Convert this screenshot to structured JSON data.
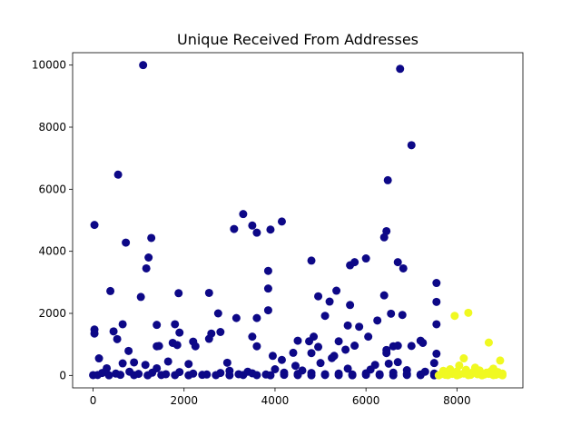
{
  "chart_data": {
    "type": "scatter",
    "title": "Unique Received From Addresses",
    "xlabel": "",
    "ylabel": "",
    "xlim": [
      -450,
      9450
    ],
    "ylim": [
      -400,
      10400
    ],
    "xticks": [
      0,
      2000,
      4000,
      6000,
      8000
    ],
    "yticks": [
      0,
      2000,
      4000,
      6000,
      8000,
      10000
    ],
    "grid": false,
    "legend": "none",
    "colors": {
      "class_0": "#0d0887",
      "class_1": "#f0f921"
    },
    "series": [
      {
        "class": 0,
        "color": "#0d0887",
        "points": [
          [
            1100,
            10000
          ],
          [
            6750,
            9880
          ],
          [
            7000,
            7420
          ],
          [
            550,
            6470
          ],
          [
            6480,
            6290
          ],
          [
            30,
            4850
          ],
          [
            3300,
            5200
          ],
          [
            3500,
            4830
          ],
          [
            4150,
            4960
          ],
          [
            3600,
            4600
          ],
          [
            3900,
            4700
          ],
          [
            3100,
            4720
          ],
          [
            1280,
            4430
          ],
          [
            720,
            4280
          ],
          [
            6450,
            4650
          ],
          [
            6400,
            4450
          ],
          [
            1220,
            3800
          ],
          [
            1170,
            3450
          ],
          [
            4800,
            3700
          ],
          [
            5650,
            3550
          ],
          [
            5750,
            3650
          ],
          [
            6000,
            3770
          ],
          [
            6700,
            3650
          ],
          [
            6820,
            3450
          ],
          [
            3850,
            3370
          ],
          [
            7550,
            2980
          ],
          [
            380,
            2720
          ],
          [
            1050,
            2530
          ],
          [
            1880,
            2650
          ],
          [
            2550,
            2660
          ],
          [
            3850,
            2800
          ],
          [
            5350,
            2730
          ],
          [
            4950,
            2550
          ],
          [
            5200,
            2380
          ],
          [
            6400,
            2580
          ],
          [
            7550,
            2370
          ],
          [
            5650,
            2270
          ],
          [
            6550,
            1990
          ],
          [
            6800,
            1950
          ],
          [
            2750,
            2000
          ],
          [
            3850,
            2100
          ],
          [
            3150,
            1850
          ],
          [
            3600,
            1850
          ],
          [
            5100,
            1920
          ],
          [
            5850,
            1570
          ],
          [
            5600,
            1610
          ],
          [
            6250,
            1770
          ],
          [
            7550,
            1650
          ],
          [
            30,
            1480
          ],
          [
            30,
            1350
          ],
          [
            650,
            1650
          ],
          [
            1400,
            1630
          ],
          [
            1800,
            1650
          ],
          [
            1900,
            1380
          ],
          [
            2600,
            1350
          ],
          [
            2800,
            1400
          ],
          [
            450,
            1420
          ],
          [
            530,
            1170
          ],
          [
            2550,
            1180
          ],
          [
            2200,
            1090
          ],
          [
            3500,
            1250
          ],
          [
            4500,
            1120
          ],
          [
            4850,
            1250
          ],
          [
            4750,
            1100
          ],
          [
            5400,
            1100
          ],
          [
            6050,
            1250
          ],
          [
            7200,
            1120
          ],
          [
            7250,
            1050
          ],
          [
            6700,
            960
          ],
          [
            6600,
            940
          ],
          [
            1750,
            1050
          ],
          [
            1850,
            980
          ],
          [
            1400,
            940
          ],
          [
            1450,
            950
          ],
          [
            2250,
            940
          ],
          [
            3600,
            940
          ],
          [
            4950,
            920
          ],
          [
            5550,
            830
          ],
          [
            5750,
            960
          ],
          [
            6450,
            820
          ],
          [
            6450,
            720
          ],
          [
            7000,
            950
          ],
          [
            780,
            790
          ],
          [
            3950,
            630
          ],
          [
            4800,
            720
          ],
          [
            4400,
            730
          ],
          [
            5250,
            560
          ],
          [
            5300,
            630
          ],
          [
            7550,
            700
          ],
          [
            130,
            550
          ],
          [
            650,
            390
          ],
          [
            900,
            420
          ],
          [
            1150,
            340
          ],
          [
            1650,
            450
          ],
          [
            2100,
            370
          ],
          [
            2950,
            410
          ],
          [
            4150,
            500
          ],
          [
            4450,
            310
          ],
          [
            5000,
            400
          ],
          [
            6200,
            340
          ],
          [
            6700,
            430
          ],
          [
            6500,
            380
          ],
          [
            7500,
            400
          ],
          [
            300,
            230
          ],
          [
            1400,
            230
          ],
          [
            3000,
            150
          ],
          [
            3400,
            120
          ],
          [
            4000,
            200
          ],
          [
            4600,
            160
          ],
          [
            5600,
            220
          ],
          [
            6100,
            190
          ],
          [
            6900,
            170
          ],
          [
            7300,
            120
          ],
          [
            200,
            80
          ],
          [
            500,
            60
          ],
          [
            800,
            120
          ],
          [
            1000,
            50
          ],
          [
            1300,
            90
          ],
          [
            1600,
            40
          ],
          [
            1900,
            110
          ],
          [
            2200,
            60
          ],
          [
            2500,
            30
          ],
          [
            2800,
            80
          ],
          [
            3200,
            40
          ],
          [
            3500,
            70
          ],
          [
            3800,
            30
          ],
          [
            4200,
            90
          ],
          [
            4500,
            50
          ],
          [
            4800,
            80
          ],
          [
            5100,
            40
          ],
          [
            5400,
            60
          ],
          [
            5700,
            30
          ],
          [
            6000,
            70
          ],
          [
            6300,
            40
          ],
          [
            6600,
            90
          ],
          [
            6900,
            50
          ],
          [
            7200,
            30
          ],
          [
            7500,
            60
          ],
          [
            0,
            10
          ],
          [
            100,
            15
          ],
          [
            350,
            5
          ],
          [
            600,
            20
          ],
          [
            900,
            10
          ],
          [
            1200,
            5
          ],
          [
            1500,
            15
          ],
          [
            1800,
            10
          ],
          [
            2100,
            5
          ],
          [
            2400,
            20
          ],
          [
            2700,
            10
          ],
          [
            3000,
            5
          ],
          [
            3300,
            15
          ],
          [
            3600,
            10
          ],
          [
            3900,
            5
          ],
          [
            4200,
            20
          ],
          [
            4500,
            10
          ],
          [
            4800,
            5
          ],
          [
            5100,
            15
          ],
          [
            5400,
            10
          ],
          [
            5700,
            5
          ],
          [
            6000,
            20
          ],
          [
            6300,
            10
          ],
          [
            6600,
            5
          ],
          [
            6900,
            15
          ],
          [
            7200,
            10
          ],
          [
            7500,
            5
          ]
        ]
      },
      {
        "class": 1,
        "color": "#f0f921",
        "points": [
          [
            7950,
            1920
          ],
          [
            8250,
            2020
          ],
          [
            8700,
            1060
          ],
          [
            8150,
            550
          ],
          [
            8950,
            480
          ],
          [
            8050,
            320
          ],
          [
            8400,
            250
          ],
          [
            8800,
            220
          ],
          [
            7700,
            150
          ],
          [
            7850,
            200
          ],
          [
            8000,
            130
          ],
          [
            8200,
            180
          ],
          [
            8350,
            100
          ],
          [
            8500,
            160
          ],
          [
            8650,
            90
          ],
          [
            8750,
            140
          ],
          [
            8900,
            110
          ],
          [
            9000,
            60
          ],
          [
            7650,
            40
          ],
          [
            7750,
            20
          ],
          [
            7900,
            50
          ],
          [
            8050,
            30
          ],
          [
            8150,
            60
          ],
          [
            8300,
            20
          ],
          [
            8450,
            40
          ],
          [
            8600,
            30
          ],
          [
            8700,
            50
          ],
          [
            8850,
            20
          ],
          [
            8950,
            40
          ],
          [
            7600,
            5
          ],
          [
            7800,
            10
          ],
          [
            8000,
            5
          ],
          [
            8250,
            10
          ],
          [
            8550,
            5
          ],
          [
            8800,
            10
          ],
          [
            9000,
            5
          ]
        ]
      }
    ]
  }
}
